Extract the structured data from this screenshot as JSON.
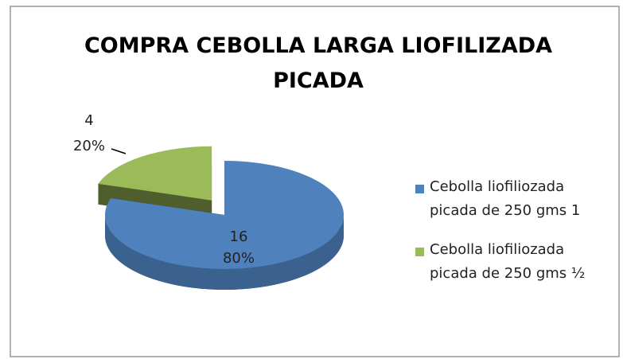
{
  "chart_data": {
    "type": "pie3d",
    "title": "COMPRA CEBOLLA LARGA LIOFILIZADA PICADA",
    "series": [
      {
        "name": "Cebolla liofiliozada picada de 250 gms 1",
        "color": "#4f81bd"
      },
      {
        "name": "Cebolla liofiliozada picada de 250 gms ½",
        "color": "#9bbb59"
      }
    ],
    "values": [
      16,
      4
    ],
    "percents": [
      80,
      20
    ],
    "percent_labels": [
      "80%",
      "20%"
    ],
    "legend": "right"
  }
}
